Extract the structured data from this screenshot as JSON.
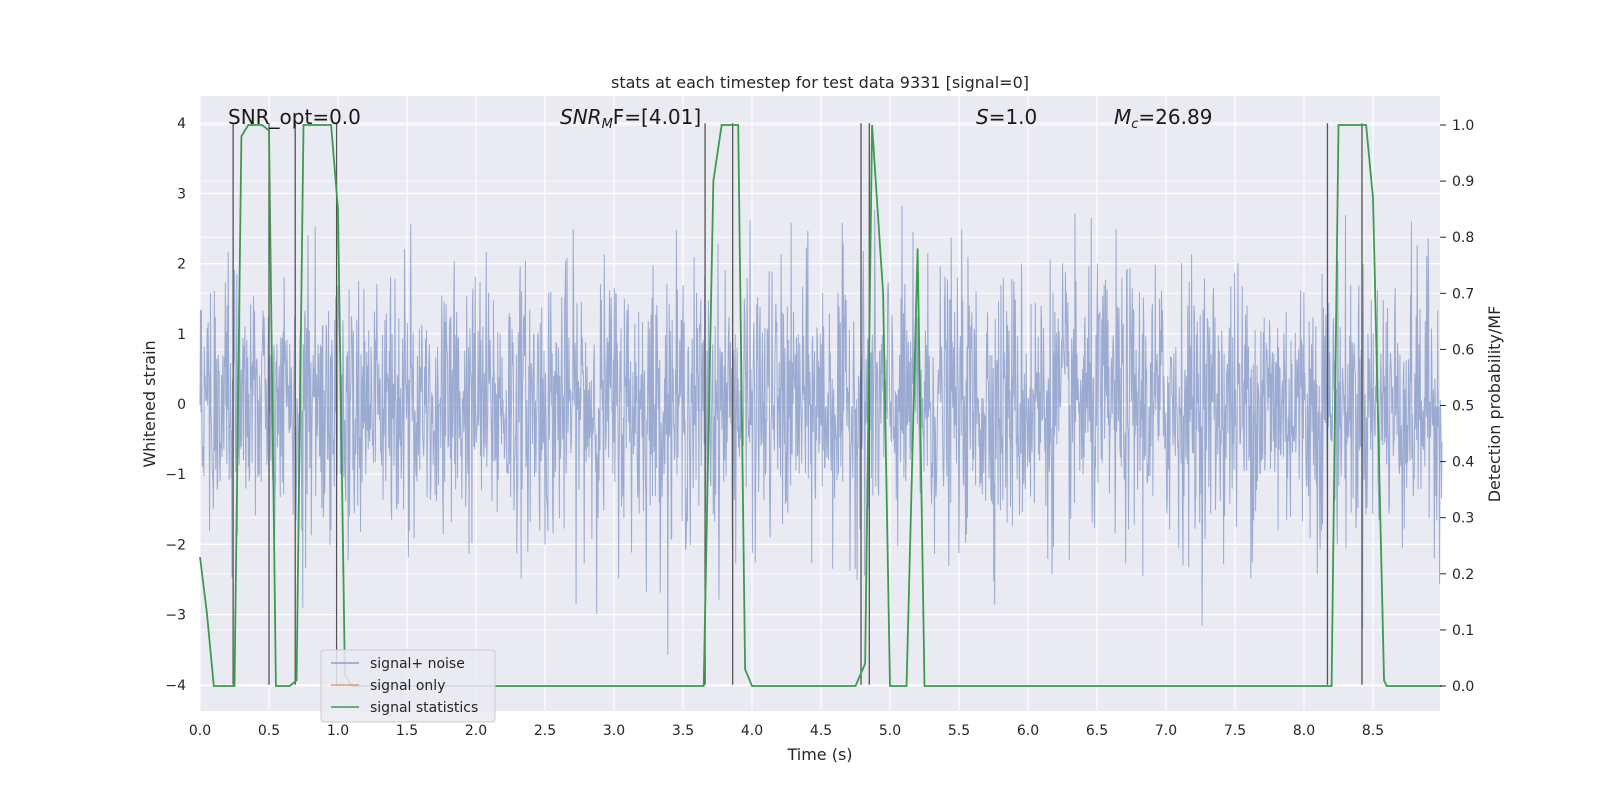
{
  "chart_data": {
    "type": "line",
    "title": "stats at each timestep for test data 9331 [signal=0]",
    "xlabel": "Time (s)",
    "ylabel_left": "Whitened strain",
    "ylabel_right": "Detection probability/MF",
    "xlim": [
      0.0,
      9.0
    ],
    "ylim_left": [
      -4.4,
      4.4
    ],
    "ylim_right": [
      -0.05,
      1.04
    ],
    "xticks": [
      "0.0",
      "0.5",
      "1.0",
      "1.5",
      "2.0",
      "2.5",
      "3.0",
      "3.5",
      "4.0",
      "4.5",
      "5.0",
      "5.5",
      "6.0",
      "6.5",
      "7.0",
      "7.5",
      "8.0",
      "8.5"
    ],
    "yticks_left": [
      "4",
      "3",
      "2",
      "1",
      "0",
      "−1",
      "−2",
      "−3",
      "−4"
    ],
    "yticks_right": [
      "1.0",
      "0.9",
      "0.8",
      "0.7",
      "0.6",
      "0.5",
      "0.4",
      "0.3",
      "0.2",
      "0.1",
      "0.0"
    ],
    "grid": true,
    "legend_position": "lower-left",
    "series": [
      {
        "name": "signal+ noise",
        "color": "#8c9fcb",
        "kind": "whitened strain noise, amplitude mostly within ±2, peaks near ±4"
      },
      {
        "name": "signal only",
        "color": "#e79b7c",
        "values": []
      },
      {
        "name": "signal statistics",
        "color": "#3d9a4f",
        "axis": "right",
        "x": [
          0.0,
          0.05,
          0.1,
          0.25,
          0.3,
          0.35,
          0.45,
          0.5,
          0.55,
          0.65,
          0.7,
          0.75,
          0.85,
          0.95,
          1.0,
          1.05,
          1.1,
          3.3,
          3.65,
          3.72,
          3.78,
          3.9,
          3.95,
          4.0,
          4.75,
          4.82,
          4.87,
          4.95,
          5.0,
          5.12,
          5.2,
          5.25,
          5.3,
          8.2,
          8.25,
          8.3,
          8.35,
          8.45,
          8.5,
          8.58,
          8.6,
          8.65,
          9.0
        ],
        "values": [
          0.23,
          0.13,
          0.0,
          0.0,
          0.98,
          1.0,
          1.0,
          0.99,
          0.0,
          0.0,
          0.01,
          1.0,
          1.0,
          1.0,
          0.85,
          0.02,
          0.0,
          0.0,
          0.0,
          0.9,
          1.0,
          1.0,
          0.03,
          0.0,
          0.0,
          0.04,
          1.0,
          0.7,
          0.0,
          0.0,
          0.78,
          0.0,
          0.0,
          0.0,
          1.0,
          1.0,
          1.0,
          1.0,
          0.87,
          0.01,
          0.0,
          0.0,
          0.0
        ]
      }
    ],
    "vlines": [
      0.24,
      0.5,
      0.69,
      0.99,
      3.66,
      3.86,
      4.79,
      4.85,
      8.17,
      8.42
    ],
    "annotations": [
      {
        "text": "SNR_opt=0.0",
        "x": 0.2,
        "y": 4.15
      },
      {
        "text": "SNR_MF=[4.01]",
        "x": 2.6,
        "y": 4.15
      },
      {
        "text": "S=1.0",
        "x": 5.6,
        "y": 4.15
      },
      {
        "text": "M_c=26.89",
        "x": 6.6,
        "y": 4.15
      }
    ]
  },
  "legend": {
    "items": [
      "signal+ noise",
      "signal only",
      "signal statistics"
    ]
  },
  "annotations_text": {
    "snr_opt": "SNR_opt=0.0",
    "snr_mf_main": "SNR",
    "snr_mf_sub": "M",
    "snr_mf_rest": "F=[4.01]",
    "s_main": "S",
    "s_rest": "=1.0",
    "mc_main": "M",
    "mc_sub": "c",
    "mc_rest": "=26.89"
  }
}
